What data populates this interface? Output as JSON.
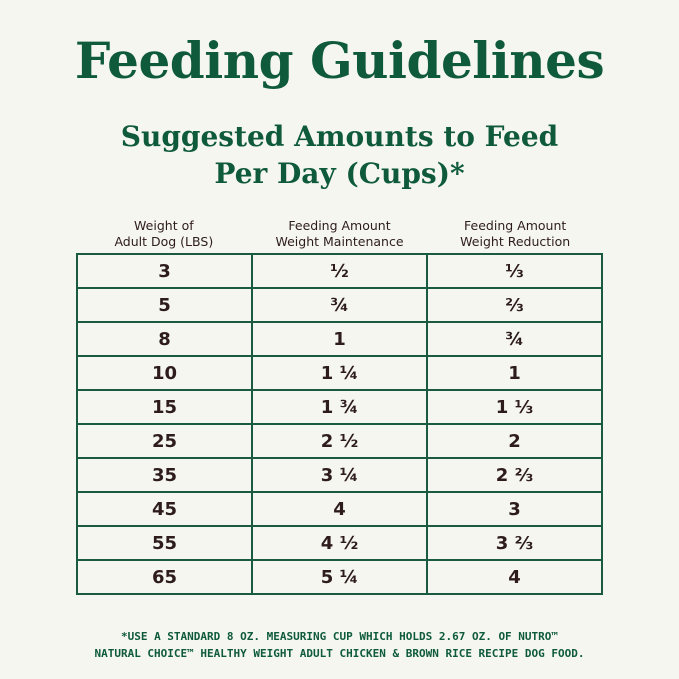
{
  "title": "Feeding Guidelines",
  "subtitle_line1": "Suggested Amounts to Feed",
  "subtitle_line2": "Per Day (Cups)*",
  "table": {
    "headers": [
      "Weight of\nAdult Dog (LBS)",
      "Feeding Amount\nWeight Maintenance",
      "Feeding Amount\nWeight Reduction"
    ],
    "rows": [
      [
        "3",
        "½",
        "⅓"
      ],
      [
        "5",
        "¾",
        "⅔"
      ],
      [
        "8",
        "1",
        "¾"
      ],
      [
        "10",
        "1 ¼",
        "1"
      ],
      [
        "15",
        "1 ¾",
        "1 ⅓"
      ],
      [
        "25",
        "2 ½",
        "2"
      ],
      [
        "35",
        "3 ¼",
        "2 ⅔"
      ],
      [
        "45",
        "4",
        "3"
      ],
      [
        "55",
        "4 ½",
        "3 ⅔"
      ],
      [
        "65",
        "5 ¼",
        "4"
      ]
    ]
  },
  "footnote_line1": "*USE A STANDARD 8 OZ. MEASURING CUP WHICH HOLDS 2.67 OZ. OF NUTRO™",
  "footnote_line2": "NATURAL CHOICE™ HEALTHY WEIGHT ADULT CHICKEN & BROWN RICE RECIPE DOG FOOD.",
  "colors": {
    "brand_green": "#0f5a3b",
    "text": "#2e1c1c",
    "background": "#f4f6ef"
  }
}
